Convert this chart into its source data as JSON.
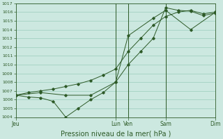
{
  "title": "",
  "xlabel": "Pression niveau de la mer( hPa )",
  "background_color": "#cce8e0",
  "plot_bg_color": "#cce8e0",
  "grid_color": "#99ccbb",
  "line_color": "#2d5a27",
  "tick_label_color": "#2d5a27",
  "ylim": [
    1004,
    1017
  ],
  "yticks": [
    1004,
    1005,
    1006,
    1007,
    1008,
    1009,
    1010,
    1011,
    1012,
    1013,
    1014,
    1015,
    1016,
    1017
  ],
  "xlim": [
    0,
    96
  ],
  "xtick_positions": [
    0,
    48,
    54,
    72,
    96
  ],
  "xtick_labels": [
    "Jeu",
    "Lun",
    "Ven",
    "Sam",
    "Dim"
  ],
  "vline_positions": [
    48,
    54,
    72,
    96
  ],
  "line1_x": [
    0,
    6,
    12,
    18,
    24,
    30,
    36,
    42,
    48,
    54,
    60,
    66,
    72,
    78,
    84,
    90,
    96
  ],
  "line1_y": [
    1006.5,
    1006.8,
    1007.0,
    1007.2,
    1007.5,
    1007.8,
    1008.2,
    1008.8,
    1009.5,
    1011.5,
    1013.0,
    1014.5,
    1015.5,
    1016.0,
    1016.2,
    1015.8,
    1016.0
  ],
  "line2_x": [
    0,
    6,
    12,
    18,
    24,
    30,
    36,
    42,
    48,
    54,
    60,
    66,
    72,
    78,
    84,
    90,
    96
  ],
  "line2_y": [
    1006.5,
    1006.3,
    1006.2,
    1005.8,
    1004.0,
    1005.0,
    1006.0,
    1006.8,
    1008.0,
    1010.0,
    1011.5,
    1013.0,
    1016.5,
    1016.2,
    1016.1,
    1015.6,
    1015.9
  ],
  "line3_x": [
    0,
    12,
    24,
    36,
    48,
    54,
    66,
    72,
    84,
    96
  ],
  "line3_y": [
    1006.5,
    1006.8,
    1006.5,
    1006.5,
    1008.0,
    1013.3,
    1015.3,
    1016.2,
    1014.0,
    1016.0
  ]
}
